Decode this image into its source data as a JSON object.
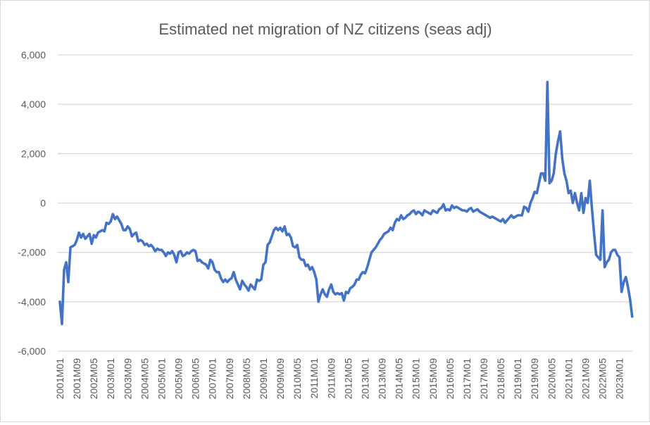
{
  "chart_data": {
    "type": "line",
    "title": "Estimated net migration of NZ citizens (seas adj)",
    "xlabel": "",
    "ylabel": "",
    "ylim": [
      -6000,
      6000
    ],
    "y_ticks": [
      6000,
      4000,
      2000,
      0,
      -2000,
      -4000,
      -6000
    ],
    "y_tick_labels": [
      "6,000",
      "4,000",
      "2,000",
      "0",
      "-2,000",
      "-4,000",
      "-6,000"
    ],
    "x_start": "2001M01",
    "x_frequency": "monthly",
    "x_tick_labels": [
      "2001M01",
      "2001M09",
      "2002M05",
      "2003M01",
      "2003M09",
      "2004M05",
      "2005M01",
      "2005M09",
      "2006M05",
      "2007M01",
      "2007M09",
      "2008M05",
      "2009M01",
      "2009M09",
      "2010M05",
      "2011M01",
      "2011M09",
      "2012M05",
      "2013M01",
      "2013M09",
      "2014M05",
      "2015M01",
      "2015M09",
      "2016M05",
      "2017M01",
      "2017M09",
      "2018M05",
      "2019M01",
      "2019M09",
      "2020M05",
      "2021M01",
      "2021M09",
      "2022M05",
      "2023M01"
    ],
    "grid": true,
    "legend": "none",
    "line_color": "#4472C4",
    "series": [
      {
        "values": [
          -4000,
          -4900,
          -2700,
          -2400,
          -3200,
          -1800,
          -1750,
          -1700,
          -1500,
          -1200,
          -1400,
          -1250,
          -1450,
          -1350,
          -1250,
          -1650,
          -1300,
          -1400,
          -1200,
          -1150,
          -1100,
          -1150,
          -800,
          -850,
          -750,
          -450,
          -650,
          -550,
          -700,
          -850,
          -1100,
          -1100,
          -950,
          -1050,
          -1350,
          -1250,
          -1200,
          -1550,
          -1500,
          -1550,
          -1700,
          -1650,
          -1750,
          -1700,
          -1800,
          -1950,
          -1850,
          -1900,
          -1900,
          -2000,
          -2150,
          -2000,
          -2050,
          -1950,
          -2100,
          -2400,
          -2000,
          -1950,
          -2150,
          -2100,
          -2000,
          -2050,
          -1950,
          -1900,
          -1950,
          -2350,
          -2300,
          -2400,
          -2450,
          -2500,
          -2650,
          -2300,
          -2400,
          -2700,
          -2800,
          -2800,
          -3050,
          -3200,
          -3100,
          -3200,
          -3100,
          -3050,
          -2800,
          -3100,
          -3300,
          -3500,
          -3150,
          -3300,
          -3400,
          -3550,
          -3300,
          -3400,
          -3500,
          -3100,
          -3150,
          -3100,
          -2500,
          -2400,
          -1700,
          -1600,
          -1350,
          -1100,
          -1000,
          -1100,
          -1000,
          -1150,
          -950,
          -1300,
          -1250,
          -1400,
          -1750,
          -1800,
          -1700,
          -2200,
          -2300,
          -2300,
          -2550,
          -2500,
          -2700,
          -2600,
          -2800,
          -3100,
          -4000,
          -3700,
          -3500,
          -3700,
          -3800,
          -3500,
          -3300,
          -3600,
          -3700,
          -3650,
          -3700,
          -3650,
          -3950,
          -3600,
          -3650,
          -3450,
          -3400,
          -3300,
          -3100,
          -3100,
          -2900,
          -2800,
          -2850,
          -2600,
          -2300,
          -2000,
          -1900,
          -1800,
          -1650,
          -1500,
          -1400,
          -1250,
          -1200,
          -1150,
          -1000,
          -1100,
          -800,
          -650,
          -700,
          -500,
          -650,
          -600,
          -500,
          -450,
          -350,
          -300,
          -450,
          -350,
          -400,
          -500,
          -300,
          -350,
          -400,
          -450,
          -300,
          -350,
          -400,
          -250,
          -200,
          -50,
          -300,
          -250,
          -300,
          -100,
          -200,
          -150,
          -200,
          -250,
          -300,
          -300,
          -350,
          -250,
          -200,
          -350,
          -300,
          -250,
          -350,
          -400,
          -450,
          -500,
          -550,
          -600,
          -550,
          -600,
          -650,
          -700,
          -750,
          -650,
          -800,
          -700,
          -600,
          -500,
          -600,
          -550,
          -500,
          -500,
          -500,
          -150,
          -200,
          -350,
          0,
          200,
          450,
          400,
          800,
          1200,
          1200,
          900,
          4900,
          800,
          900,
          1200,
          2000,
          2500,
          2900,
          1800,
          1200,
          900,
          400,
          500,
          0,
          400,
          0,
          -300,
          400,
          -400,
          200,
          0,
          900,
          -200,
          -1200,
          -2100,
          -2200,
          -2300,
          -300,
          -2600,
          -2400,
          -2300,
          -2000,
          -1900,
          -1900,
          -2100,
          -2200,
          -3600,
          -3200,
          -3000,
          -3400,
          -3900,
          -4600
        ]
      }
    ]
  }
}
